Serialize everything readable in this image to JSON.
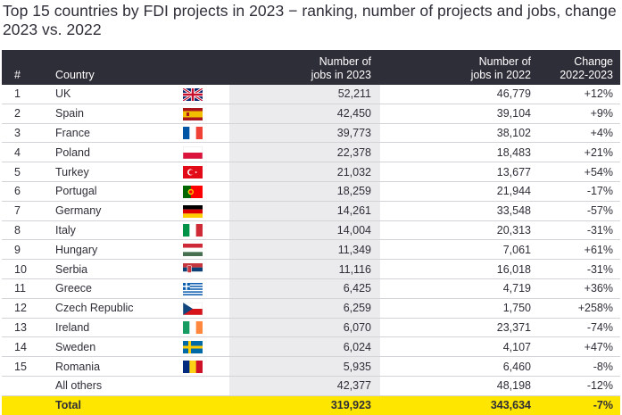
{
  "title": "Top 15 countries by FDI projects in 2023 − ranking, number of projects and jobs, change 2023 vs. 2022",
  "colors": {
    "header_bg": "#2e2e38",
    "highlight_col": "#ebebed",
    "total_bg": "#ffe600"
  },
  "chart_data": {
    "type": "table",
    "title": "Top 15 countries by FDI projects in 2023 − ranking, number of projects and jobs, change 2023 vs. 2022",
    "columns": [
      "#",
      "Country",
      "Number of jobs in 2023",
      "Number of jobs in 2022",
      "Change 2022-2023"
    ],
    "header": {
      "rank": "#",
      "country": "Country",
      "jobs_2023_line1": "Number of",
      "jobs_2023_line2": "jobs in 2023",
      "jobs_2022_line1": "Number of",
      "jobs_2022_line2": "jobs in 2022",
      "change_line1": "Change",
      "change_line2": "2022-2023"
    },
    "rows": [
      {
        "rank": "1",
        "country": "UK",
        "flag": "uk",
        "jobs_2023": "52,211",
        "jobs_2022": "46,779",
        "change": "+12%"
      },
      {
        "rank": "2",
        "country": "Spain",
        "flag": "spain",
        "jobs_2023": "42,450",
        "jobs_2022": "39,104",
        "change": "+9%"
      },
      {
        "rank": "3",
        "country": "France",
        "flag": "france",
        "jobs_2023": "39,773",
        "jobs_2022": "38,102",
        "change": "+4%"
      },
      {
        "rank": "4",
        "country": "Poland",
        "flag": "poland",
        "jobs_2023": "22,378",
        "jobs_2022": "18,483",
        "change": "+21%"
      },
      {
        "rank": "5",
        "country": "Turkey",
        "flag": "turkey",
        "jobs_2023": "21,032",
        "jobs_2022": "13,677",
        "change": "+54%"
      },
      {
        "rank": "6",
        "country": "Portugal",
        "flag": "portugal",
        "jobs_2023": "18,259",
        "jobs_2022": "21,944",
        "change": "-17%"
      },
      {
        "rank": "7",
        "country": "Germany",
        "flag": "germany",
        "jobs_2023": "14,261",
        "jobs_2022": "33,548",
        "change": "-57%"
      },
      {
        "rank": "8",
        "country": "Italy",
        "flag": "italy",
        "jobs_2023": "14,004",
        "jobs_2022": "20,313",
        "change": "-31%"
      },
      {
        "rank": "9",
        "country": "Hungary",
        "flag": "hungary",
        "jobs_2023": "11,349",
        "jobs_2022": "7,061",
        "change": "+61%"
      },
      {
        "rank": "10",
        "country": "Serbia",
        "flag": "serbia",
        "jobs_2023": "11,116",
        "jobs_2022": "16,018",
        "change": "-31%"
      },
      {
        "rank": "11",
        "country": "Greece",
        "flag": "greece",
        "jobs_2023": "6,425",
        "jobs_2022": "4,719",
        "change": "+36%"
      },
      {
        "rank": "12",
        "country": "Czech Republic",
        "flag": "czech",
        "jobs_2023": "6,259",
        "jobs_2022": "1,750",
        "change": "+258%"
      },
      {
        "rank": "13",
        "country": "Ireland",
        "flag": "ireland",
        "jobs_2023": "6,070",
        "jobs_2022": "23,371",
        "change": "-74%"
      },
      {
        "rank": "14",
        "country": "Sweden",
        "flag": "sweden",
        "jobs_2023": "6,024",
        "jobs_2022": "4,107",
        "change": "+47%"
      },
      {
        "rank": "15",
        "country": "Romania",
        "flag": "romania",
        "jobs_2023": "5,935",
        "jobs_2022": "6,460",
        "change": "-8%"
      },
      {
        "rank": "",
        "country": "All others",
        "flag": "",
        "jobs_2023": "42,377",
        "jobs_2022": "48,198",
        "change": "-12%"
      }
    ],
    "total": {
      "label": "Total",
      "jobs_2023": "319,923",
      "jobs_2022": "343,634",
      "change": "-7%"
    }
  }
}
